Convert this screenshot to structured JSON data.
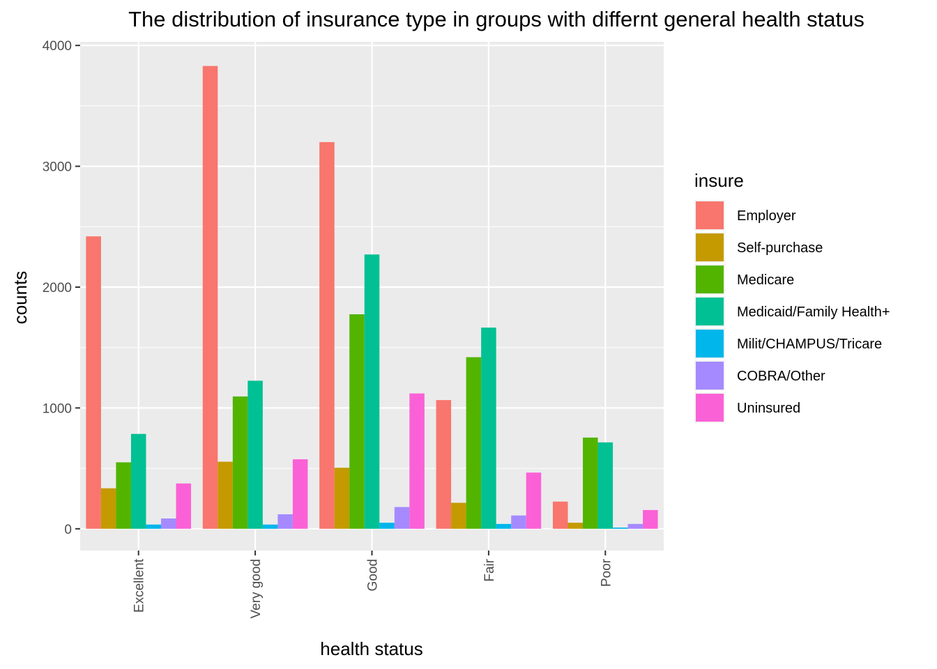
{
  "chart_data": {
    "type": "bar",
    "title": "The distribution of insurance type in groups with differnt general health status",
    "xlabel": "health status",
    "ylabel": "counts",
    "categories": [
      "Excellent",
      "Very good",
      "Good",
      "Fair",
      "Poor"
    ],
    "ylim": [
      -180,
      4030
    ],
    "yticks": [
      0,
      1000,
      2000,
      3000,
      4000
    ],
    "grid": true,
    "legend": {
      "title": "insure",
      "position": "right"
    },
    "series": [
      {
        "name": "Employer",
        "color": "#F8766D",
        "values": [
          2420,
          3830,
          3200,
          1065,
          225
        ]
      },
      {
        "name": "Self-purchase",
        "color": "#C49A00",
        "values": [
          335,
          555,
          505,
          215,
          50
        ]
      },
      {
        "name": "Medicare",
        "color": "#53B400",
        "values": [
          550,
          1095,
          1775,
          1420,
          755
        ]
      },
      {
        "name": "Medicaid/Family Health+",
        "color": "#00C094",
        "values": [
          785,
          1225,
          2270,
          1665,
          715
        ]
      },
      {
        "name": "Milit/CHAMPUS/Tricare",
        "color": "#00B6EB",
        "values": [
          35,
          35,
          50,
          40,
          10
        ]
      },
      {
        "name": "COBRA/Other",
        "color": "#A58AFF",
        "values": [
          85,
          120,
          180,
          110,
          40
        ]
      },
      {
        "name": "Uninsured",
        "color": "#FB61D7",
        "values": [
          375,
          575,
          1120,
          465,
          155
        ]
      }
    ]
  }
}
